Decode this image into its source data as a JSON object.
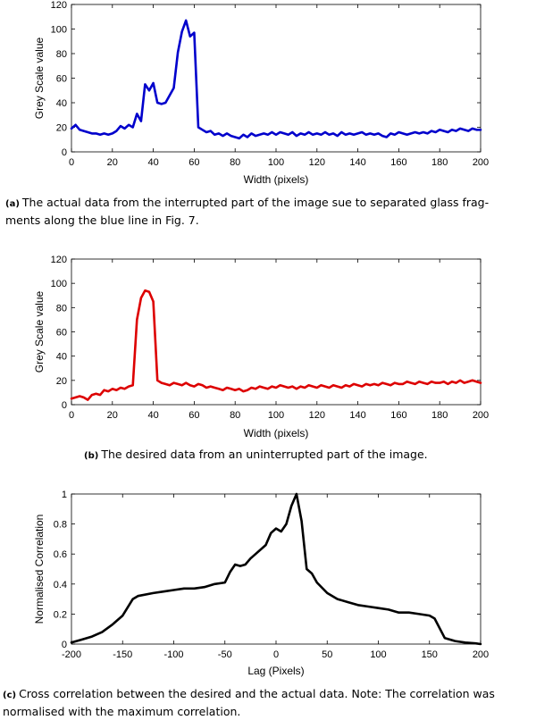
{
  "chart_data": [
    {
      "type": "line",
      "color": "#0000cc",
      "xlabel": "Width (pixels)",
      "ylabel": "Grey Scale value",
      "xlim": [
        0,
        200
      ],
      "ylim": [
        0,
        120
      ],
      "xticks": [
        0,
        20,
        40,
        60,
        80,
        100,
        120,
        140,
        160,
        180,
        200
      ],
      "yticks": [
        0,
        20,
        40,
        60,
        80,
        100,
        120
      ],
      "series": [
        {
          "x": [
            0,
            2,
            4,
            6,
            8,
            10,
            12,
            14,
            16,
            18,
            20,
            22,
            24,
            26,
            28,
            30,
            32,
            34,
            36,
            38,
            40,
            42,
            44,
            46,
            48,
            50,
            52,
            54,
            56,
            58,
            60,
            62,
            64,
            66,
            68,
            70,
            72,
            74,
            76,
            78,
            80,
            82,
            84,
            86,
            88,
            90,
            92,
            94,
            96,
            98,
            100,
            102,
            104,
            106,
            108,
            110,
            112,
            114,
            116,
            118,
            120,
            122,
            124,
            126,
            128,
            130,
            132,
            134,
            136,
            138,
            140,
            142,
            144,
            146,
            148,
            150,
            152,
            154,
            156,
            158,
            160,
            162,
            164,
            166,
            168,
            170,
            172,
            174,
            176,
            178,
            180,
            182,
            184,
            186,
            188,
            190,
            192,
            194,
            196,
            198,
            200
          ],
          "y": [
            19,
            22,
            18,
            17,
            16,
            15,
            15,
            14,
            15,
            14,
            15,
            17,
            21,
            19,
            22,
            20,
            31,
            25,
            55,
            50,
            56,
            40,
            39,
            40,
            46,
            52,
            81,
            98,
            107,
            94,
            97,
            20,
            18,
            16,
            17,
            14,
            15,
            13,
            15,
            13,
            12,
            11,
            14,
            12,
            15,
            13,
            14,
            15,
            14,
            16,
            14,
            16,
            15,
            14,
            16,
            13,
            15,
            14,
            16,
            14,
            15,
            14,
            16,
            14,
            15,
            13,
            16,
            14,
            15,
            14,
            15,
            16,
            14,
            15,
            14,
            15,
            13,
            12,
            15,
            14,
            16,
            15,
            14,
            15,
            16,
            15,
            16,
            15,
            17,
            16,
            18,
            17,
            16,
            18,
            17,
            19,
            18,
            17,
            19,
            18,
            18
          ]
        }
      ]
    },
    {
      "type": "line",
      "color": "#dd0000",
      "xlabel": "Width (pixels)",
      "ylabel": "Grey Scale value",
      "xlim": [
        0,
        200
      ],
      "ylim": [
        0,
        120
      ],
      "xticks": [
        0,
        20,
        40,
        60,
        80,
        100,
        120,
        140,
        160,
        180,
        200
      ],
      "yticks": [
        0,
        20,
        40,
        60,
        80,
        100,
        120
      ],
      "series": [
        {
          "x": [
            0,
            2,
            4,
            6,
            8,
            10,
            12,
            14,
            16,
            18,
            20,
            22,
            24,
            26,
            28,
            30,
            32,
            34,
            36,
            38,
            40,
            42,
            44,
            46,
            48,
            50,
            52,
            54,
            56,
            58,
            60,
            62,
            64,
            66,
            68,
            70,
            72,
            74,
            76,
            78,
            80,
            82,
            84,
            86,
            88,
            90,
            92,
            94,
            96,
            98,
            100,
            102,
            104,
            106,
            108,
            110,
            112,
            114,
            116,
            118,
            120,
            122,
            124,
            126,
            128,
            130,
            132,
            134,
            136,
            138,
            140,
            142,
            144,
            146,
            148,
            150,
            152,
            154,
            156,
            158,
            160,
            162,
            164,
            166,
            168,
            170,
            172,
            174,
            176,
            178,
            180,
            182,
            184,
            186,
            188,
            190,
            192,
            194,
            196,
            198,
            200
          ],
          "y": [
            5,
            6,
            7,
            6,
            4,
            8,
            9,
            8,
            12,
            11,
            13,
            12,
            14,
            13,
            15,
            16,
            70,
            88,
            94,
            93,
            85,
            20,
            18,
            17,
            16,
            18,
            17,
            16,
            18,
            16,
            15,
            17,
            16,
            14,
            15,
            14,
            13,
            12,
            14,
            13,
            12,
            13,
            11,
            12,
            14,
            13,
            15,
            14,
            13,
            15,
            14,
            16,
            15,
            14,
            15,
            13,
            15,
            14,
            16,
            15,
            14,
            16,
            15,
            14,
            16,
            15,
            14,
            16,
            15,
            17,
            16,
            15,
            17,
            16,
            17,
            16,
            18,
            17,
            16,
            18,
            17,
            17,
            19,
            18,
            17,
            19,
            18,
            17,
            19,
            18,
            18,
            19,
            17,
            19,
            18,
            20,
            18,
            19,
            20,
            19,
            18
          ]
        }
      ]
    },
    {
      "type": "line",
      "color": "#000000",
      "xlabel": "Lag (Pixels)",
      "ylabel": "Normalised Correlation",
      "xlim": [
        -200,
        200
      ],
      "ylim": [
        0,
        1
      ],
      "xticks": [
        -200,
        -150,
        -100,
        -50,
        0,
        50,
        100,
        150,
        200
      ],
      "yticks": [
        0,
        0.2,
        0.4,
        0.6,
        0.8,
        1
      ],
      "series": [
        {
          "x": [
            -200,
            -190,
            -180,
            -170,
            -160,
            -150,
            -140,
            -135,
            -120,
            -110,
            -100,
            -90,
            -80,
            -70,
            -60,
            -50,
            -45,
            -40,
            -35,
            -30,
            -25,
            -20,
            -10,
            -5,
            0,
            5,
            10,
            15,
            20,
            25,
            30,
            35,
            40,
            50,
            60,
            70,
            80,
            90,
            100,
            110,
            120,
            130,
            140,
            150,
            155,
            165,
            175,
            185,
            195,
            200
          ],
          "y": [
            0.01,
            0.03,
            0.05,
            0.08,
            0.13,
            0.19,
            0.3,
            0.32,
            0.34,
            0.35,
            0.36,
            0.37,
            0.37,
            0.38,
            0.4,
            0.41,
            0.48,
            0.53,
            0.52,
            0.53,
            0.57,
            0.6,
            0.66,
            0.74,
            0.77,
            0.75,
            0.8,
            0.92,
            1.0,
            0.82,
            0.5,
            0.47,
            0.41,
            0.34,
            0.3,
            0.28,
            0.26,
            0.25,
            0.24,
            0.23,
            0.21,
            0.21,
            0.2,
            0.19,
            0.17,
            0.04,
            0.02,
            0.01,
            0.005,
            0.0
          ]
        }
      ]
    }
  ],
  "captions": {
    "a_label": "(a)",
    "a_line1": "The actual data from the interrupted part of the image sue to separated glass frag-",
    "a_line2": "ments along the blue line in Fig. 7.",
    "b_label": "(b)",
    "b_line1": "The desired data from an uninterrupted part of the image.",
    "c_label": "(c)",
    "c_line1": "Cross correlation between the desired and the actual data. Note: The correlation was",
    "c_line2": "normalised with the maximum correlation."
  }
}
